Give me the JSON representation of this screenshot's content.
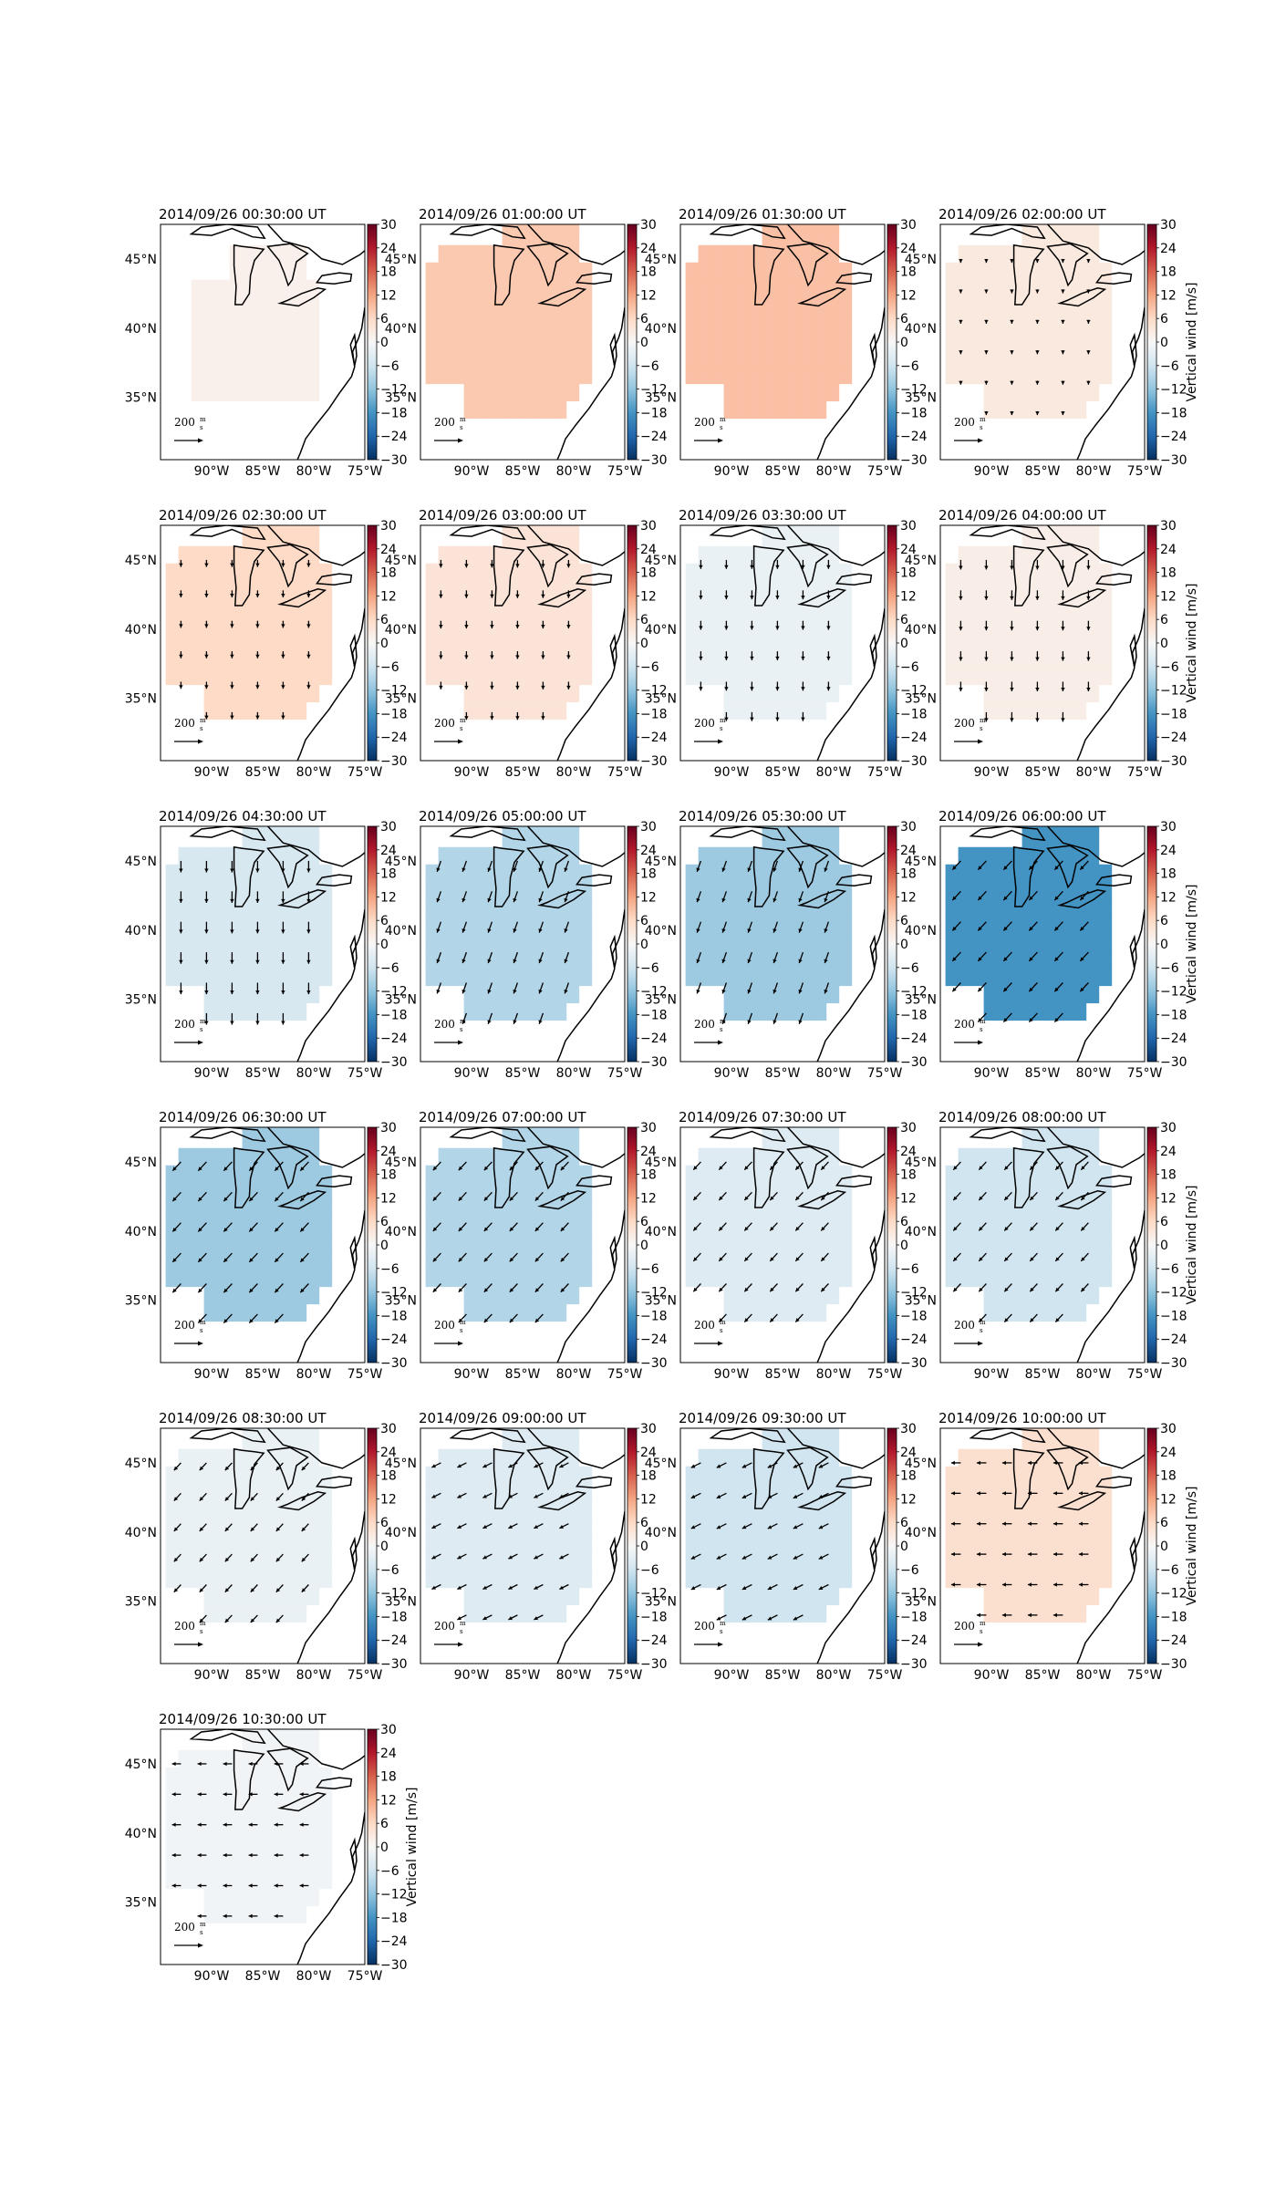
{
  "figure": {
    "colorbar_label": "Vertical wind [m/s]",
    "colorbar_ticks": [
      "30",
      "24",
      "18",
      "12",
      "6",
      "0",
      "−6",
      "−12",
      "−18",
      "−24",
      "−30"
    ],
    "lat_labels": [
      "45°N",
      "40°N",
      "35°N"
    ],
    "lon_labels": [
      "90°W",
      "85°W",
      "80°W",
      "75°W"
    ],
    "scale_label": "200",
    "scale_unit_num": "m",
    "scale_unit_den": "s",
    "colormap": "RdBu_r",
    "colors": {
      "pos_max": "#67001f",
      "zero": "#f7f7f7",
      "neg_max": "#053061"
    }
  },
  "chart_data": [
    {
      "type": "heatmap",
      "title": "2014/09/26 00:30:00 UT",
      "vertical_wind": 1.5,
      "arrow_dir": "none",
      "arrow_len": 0.15,
      "region": "small",
      "vlim": [
        -30,
        30
      ],
      "colorbar_title": false
    },
    {
      "type": "heatmap",
      "title": "2014/09/26 01:00:00 UT",
      "vertical_wind": 8,
      "arrow_dir": "none",
      "arrow_len": 0.1,
      "region": "large",
      "vlim": [
        -30,
        30
      ],
      "colorbar_title": false
    },
    {
      "type": "heatmap",
      "title": "2014/09/26 01:30:00 UT",
      "vertical_wind": 9,
      "arrow_dir": "none",
      "arrow_len": 0.1,
      "region": "large",
      "vlim": [
        -30,
        30
      ],
      "colorbar_title": false
    },
    {
      "type": "heatmap",
      "title": "2014/09/26 02:00:00 UT",
      "vertical_wind": 3,
      "arrow_dir": "S",
      "arrow_len": 0.3,
      "region": "large",
      "vlim": [
        -30,
        30
      ],
      "colorbar_title": true
    },
    {
      "type": "heatmap",
      "title": "2014/09/26 02:30:00 UT",
      "vertical_wind": 6,
      "arrow_dir": "S",
      "arrow_len": 0.55,
      "region": "large",
      "vlim": [
        -30,
        30
      ],
      "colorbar_title": false
    },
    {
      "type": "heatmap",
      "title": "2014/09/26 03:00:00 UT",
      "vertical_wind": 4,
      "arrow_dir": "S",
      "arrow_len": 0.6,
      "region": "large",
      "vlim": [
        -30,
        30
      ],
      "colorbar_title": false
    },
    {
      "type": "heatmap",
      "title": "2014/09/26 03:30:00 UT",
      "vertical_wind": -2,
      "arrow_dir": "S",
      "arrow_len": 0.7,
      "region": "large",
      "vlim": [
        -30,
        30
      ],
      "colorbar_title": false
    },
    {
      "type": "heatmap",
      "title": "2014/09/26 04:00:00 UT",
      "vertical_wind": 2,
      "arrow_dir": "S",
      "arrow_len": 0.75,
      "region": "large",
      "vlim": [
        -30,
        30
      ],
      "colorbar_title": true
    },
    {
      "type": "heatmap",
      "title": "2014/09/26 04:30:00 UT",
      "vertical_wind": -5,
      "arrow_dir": "S",
      "arrow_len": 0.9,
      "region": "large",
      "vlim": [
        -30,
        30
      ],
      "colorbar_title": false
    },
    {
      "type": "heatmap",
      "title": "2014/09/26 05:00:00 UT",
      "vertical_wind": -9,
      "arrow_dir": "SSW",
      "arrow_len": 0.9,
      "region": "large",
      "vlim": [
        -30,
        30
      ],
      "colorbar_title": false
    },
    {
      "type": "heatmap",
      "title": "2014/09/26 05:30:00 UT",
      "vertical_wind": -11,
      "arrow_dir": "SSW",
      "arrow_len": 0.9,
      "region": "large",
      "vlim": [
        -30,
        30
      ],
      "colorbar_title": false
    },
    {
      "type": "heatmap",
      "title": "2014/09/26 06:00:00 UT",
      "vertical_wind": -18,
      "arrow_dir": "SW",
      "arrow_len": 0.95,
      "region": "large",
      "vlim": [
        -30,
        30
      ],
      "colorbar_title": true
    },
    {
      "type": "heatmap",
      "title": "2014/09/26 06:30:00 UT",
      "vertical_wind": -11,
      "arrow_dir": "SW",
      "arrow_len": 0.95,
      "region": "large",
      "vlim": [
        -30,
        30
      ],
      "colorbar_title": false
    },
    {
      "type": "heatmap",
      "title": "2014/09/26 07:00:00 UT",
      "vertical_wind": -9,
      "arrow_dir": "SW",
      "arrow_len": 0.9,
      "region": "large",
      "vlim": [
        -30,
        30
      ],
      "colorbar_title": false
    },
    {
      "type": "heatmap",
      "title": "2014/09/26 07:30:00 UT",
      "vertical_wind": -4,
      "arrow_dir": "SW",
      "arrow_len": 0.85,
      "region": "large",
      "vlim": [
        -30,
        30
      ],
      "colorbar_title": false
    },
    {
      "type": "heatmap",
      "title": "2014/09/26 08:00:00 UT",
      "vertical_wind": -6,
      "arrow_dir": "SW",
      "arrow_len": 0.85,
      "region": "large",
      "vlim": [
        -30,
        30
      ],
      "colorbar_title": true
    },
    {
      "type": "heatmap",
      "title": "2014/09/26 08:30:00 UT",
      "vertical_wind": -2,
      "arrow_dir": "SW",
      "arrow_len": 0.8,
      "region": "large",
      "vlim": [
        -30,
        30
      ],
      "colorbar_title": false
    },
    {
      "type": "heatmap",
      "title": "2014/09/26 09:00:00 UT",
      "vertical_wind": -4,
      "arrow_dir": "WSW",
      "arrow_len": 0.8,
      "region": "large",
      "vlim": [
        -30,
        30
      ],
      "colorbar_title": false
    },
    {
      "type": "heatmap",
      "title": "2014/09/26 09:30:00 UT",
      "vertical_wind": -6,
      "arrow_dir": "WSW",
      "arrow_len": 0.85,
      "region": "large",
      "vlim": [
        -30,
        30
      ],
      "colorbar_title": false
    },
    {
      "type": "heatmap",
      "title": "2014/09/26 10:00:00 UT",
      "vertical_wind": 5,
      "arrow_dir": "W",
      "arrow_len": 0.75,
      "region": "large",
      "vlim": [
        -30,
        30
      ],
      "colorbar_title": true
    },
    {
      "type": "heatmap",
      "title": "2014/09/26 10:30:00 UT",
      "vertical_wind": -1,
      "arrow_dir": "W",
      "arrow_len": 0.7,
      "region": "large",
      "vlim": [
        -30,
        30
      ],
      "colorbar_title": true
    }
  ]
}
